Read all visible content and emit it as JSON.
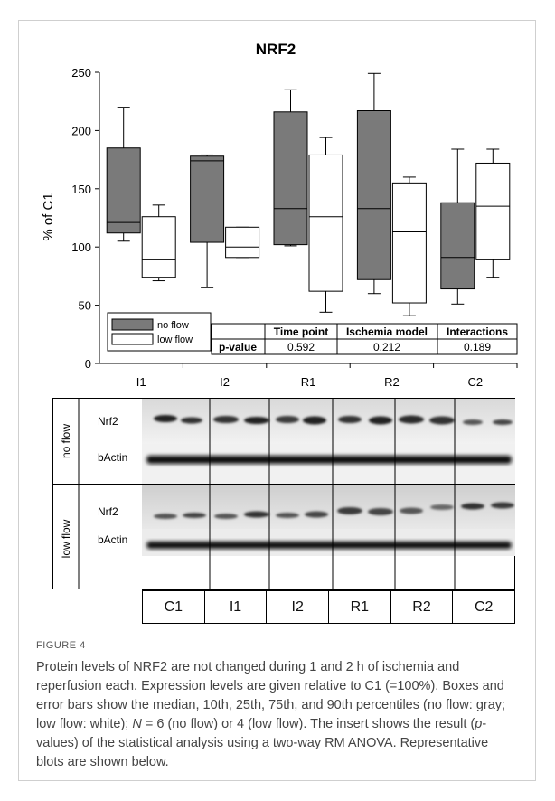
{
  "chart_data": {
    "type": "box",
    "title": "NRF2",
    "ylabel": "% of C1",
    "ylim": [
      0,
      250
    ],
    "yticks": [
      0,
      50,
      100,
      150,
      200,
      250
    ],
    "categories": [
      "I1",
      "I2",
      "R1",
      "R2",
      "C2"
    ],
    "series": [
      {
        "name": "no flow",
        "color": "#7a7a7a",
        "boxes": [
          {
            "p10": 105,
            "q1": 112,
            "median": 121,
            "q3": 185,
            "p90": 220
          },
          {
            "p10": 65,
            "q1": 104,
            "median": 174,
            "q3": 178,
            "p90": 179
          },
          {
            "p10": 101,
            "q1": 102,
            "median": 133,
            "q3": 216,
            "p90": 235
          },
          {
            "p10": 60,
            "q1": 72,
            "median": 133,
            "q3": 217,
            "p90": 249
          },
          {
            "p10": 51,
            "q1": 64,
            "median": 91,
            "q3": 138,
            "p90": 184
          }
        ]
      },
      {
        "name": "low flow",
        "color": "#ffffff",
        "boxes": [
          {
            "p10": 71,
            "q1": 74,
            "median": 89,
            "q3": 126,
            "p90": 136
          },
          {
            "p10": 91,
            "q1": 91,
            "median": 100,
            "q3": 117,
            "p90": 117
          },
          {
            "p10": 44,
            "q1": 62,
            "median": 126,
            "q3": 179,
            "p90": 194
          },
          {
            "p10": 41,
            "q1": 52,
            "median": 113,
            "q3": 155,
            "p90": 160
          },
          {
            "p10": 74,
            "q1": 89,
            "median": 135,
            "q3": 172,
            "p90": 184
          }
        ]
      }
    ],
    "legend_position": "bottom-left",
    "stats_table": {
      "row_label": "p-value",
      "headers": [
        "Time point",
        "Ischemia model",
        "Interactions"
      ],
      "values": [
        "0.592",
        "0.212",
        "0.189"
      ]
    }
  },
  "blot": {
    "groups": [
      {
        "label": "no flow",
        "proteins": [
          "Nrf2",
          "bActin"
        ]
      },
      {
        "label": "low flow",
        "proteins": [
          "Nrf2",
          "bActin"
        ]
      }
    ],
    "lanes": [
      "C1",
      "I1",
      "I2",
      "R1",
      "R2",
      "C2"
    ]
  },
  "caption": {
    "label": "FIGURE 4",
    "line1": "Protein levels of NRF2 are not changed during 1 and 2 h of ischemia and reperfusion each. Expression levels are given relative to C1 (=100%). Boxes and error bars show the median, 10th, 25th, 75th, and 90th percentiles (no flow: gray; low flow: white); ",
    "n_symbol": "N",
    "line2": " = 6 (no flow) or 4 (low flow). The insert shows the result (",
    "p_symbol": "p",
    "line3": "-values) of the statistical analysis using a two-way RM ANOVA. Representative blots are shown below."
  }
}
